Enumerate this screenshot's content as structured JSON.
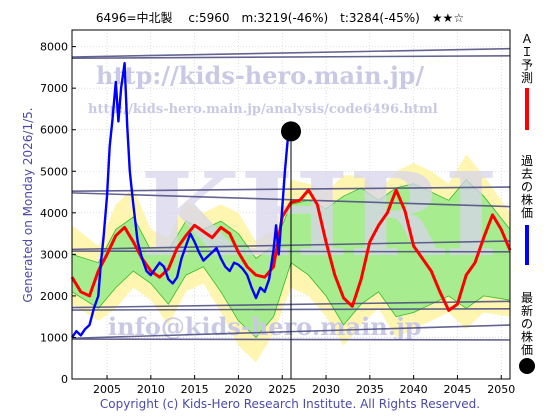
{
  "header": {
    "title": "6496=中北製　 c:5960　m:3219(-46%)　t:3284(-45%)　★★☆"
  },
  "side_label": "Generated on Monday 2026/1/5.",
  "copyright": "Copyright (c) Kids-Hero Research Institute. All Rights Reserved.",
  "watermarks": {
    "url_main": "http://kids-hero.main.jp/",
    "url_analysis": "http://kids-hero.main.jp/analysis/code6496.html",
    "email": "info@kids-hero.main.jp",
    "logo": "KHRI"
  },
  "legend": [
    {
      "label": "ＡＩ予測",
      "color": "#ff0000",
      "kind": "line"
    },
    {
      "label": "過去の株価",
      "color": "#0000ff",
      "kind": "line"
    },
    {
      "label": "最新の株価",
      "color": "#000000",
      "kind": "dot"
    }
  ],
  "colors": {
    "prediction": "#ff0000",
    "history": "#0000ff",
    "band_outer": "#fdf5b0",
    "band_inner": "#a8ec90",
    "band_line": "#33bb22",
    "ref_line": "#4a4a80",
    "grid": "#c8c8c8"
  },
  "chart_data": {
    "type": "line",
    "title": "6496=中北製　 c:5960　m:3219(-46%)　t:3284(-45%)　★★☆",
    "xlim": [
      2001,
      2051
    ],
    "ylim": [
      0,
      8400
    ],
    "xticks": [
      2005,
      2010,
      2015,
      2020,
      2025,
      2030,
      2035,
      2040,
      2045,
      2050
    ],
    "yticks": [
      0,
      1000,
      2000,
      3000,
      4000,
      5000,
      6000,
      7000,
      8000
    ],
    "grid": true,
    "current_year_marker": 2026,
    "latest_price": {
      "x": 2026,
      "y": 5960
    },
    "reference_lines": [
      {
        "x": [
          2001,
          2051
        ],
        "y": [
          7750,
          7950
        ]
      },
      {
        "x": [
          2001,
          2051
        ],
        "y": [
          7720,
          7780
        ]
      },
      {
        "x": [
          2001,
          2051
        ],
        "y": [
          4520,
          4620
        ]
      },
      {
        "x": [
          2001,
          2051
        ],
        "y": [
          4480,
          4150
        ]
      },
      {
        "x": [
          2001,
          2051
        ],
        "y": [
          3120,
          3320
        ]
      },
      {
        "x": [
          2001,
          2051
        ],
        "y": [
          3080,
          3060
        ]
      },
      {
        "x": [
          2001,
          2051
        ],
        "y": [
          1720,
          1870
        ]
      },
      {
        "x": [
          2001,
          2051
        ],
        "y": [
          1660,
          1690
        ]
      },
      {
        "x": [
          2001,
          2051
        ],
        "y": [
          980,
          1300
        ]
      },
      {
        "x": [
          2001,
          2051
        ],
        "y": [
          960,
          940
        ]
      }
    ],
    "band_outer_upper": {
      "x": [
        2001,
        2004,
        2006,
        2008,
        2010,
        2012,
        2014,
        2016,
        2018,
        2020,
        2022,
        2024,
        2026,
        2028,
        2030,
        2032,
        2034,
        2036,
        2038,
        2040,
        2042,
        2044,
        2046,
        2048,
        2051
      ],
      "y": [
        3700,
        3200,
        4200,
        4600,
        3600,
        3400,
        4300,
        4000,
        4200,
        4000,
        3300,
        3600,
        4800,
        4700,
        4500,
        4900,
        4900,
        4500,
        5000,
        5200,
        5000,
        4700,
        5400,
        4900,
        4000
      ]
    },
    "band_outer_lower": {
      "x": [
        2001,
        2004,
        2006,
        2008,
        2010,
        2012,
        2014,
        2016,
        2018,
        2020,
        2022,
        2024,
        2026,
        2028,
        2030,
        2032,
        2034,
        2036,
        2038,
        2040,
        2042,
        2044,
        2046,
        2048,
        2051
      ],
      "y": [
        1800,
        1400,
        1700,
        2200,
        1900,
        1300,
        2100,
        2300,
        1600,
        800,
        400,
        1100,
        2200,
        2000,
        1500,
        800,
        1300,
        1700,
        1000,
        1200,
        1400,
        1600,
        1200,
        1600,
        1500
      ]
    },
    "band_inner_upper": {
      "x": [
        2001,
        2004,
        2006,
        2008,
        2010,
        2012,
        2014,
        2016,
        2018,
        2020,
        2022,
        2024,
        2026,
        2028,
        2030,
        2032,
        2034,
        2036,
        2038,
        2040,
        2042,
        2044,
        2046,
        2048,
        2051
      ],
      "y": [
        3000,
        2800,
        3600,
        3900,
        3100,
        3100,
        3800,
        3600,
        3800,
        3500,
        2900,
        3200,
        4200,
        4300,
        4100,
        4400,
        4600,
        4300,
        4600,
        4700,
        4500,
        4300,
        4800,
        4400,
        3600
      ]
    },
    "band_inner_lower": {
      "x": [
        2001,
        2004,
        2006,
        2008,
        2010,
        2012,
        2014,
        2016,
        2018,
        2020,
        2022,
        2024,
        2026,
        2028,
        2030,
        2032,
        2034,
        2036,
        2038,
        2040,
        2042,
        2044,
        2046,
        2048,
        2051
      ],
      "y": [
        2100,
        1700,
        2200,
        2600,
        2300,
        1800,
        2500,
        2700,
        2100,
        1400,
        1000,
        1500,
        2800,
        2500,
        2000,
        1300,
        1800,
        2100,
        1500,
        1600,
        1800,
        2000,
        1700,
        2000,
        1900
      ]
    },
    "series": [
      {
        "name": "ＡＩ予測",
        "color": "#ff0000",
        "x": [
          2001,
          2002,
          2003,
          2004,
          2005,
          2006,
          2007,
          2008,
          2009,
          2010,
          2011,
          2012,
          2013,
          2014,
          2015,
          2016,
          2017,
          2018,
          2019,
          2020,
          2021,
          2022,
          2023,
          2024,
          2025,
          2026,
          2027,
          2028,
          2029,
          2030,
          2031,
          2032,
          2033,
          2034,
          2035,
          2036,
          2037,
          2038,
          2039,
          2040,
          2041,
          2042,
          2043,
          2044,
          2045,
          2046,
          2047,
          2048,
          2049,
          2050,
          2051
        ],
        "y": [
          2450,
          2100,
          2000,
          2600,
          3000,
          3450,
          3650,
          3300,
          2900,
          2600,
          2450,
          2650,
          3150,
          3450,
          3700,
          3550,
          3400,
          3650,
          3500,
          3050,
          2700,
          2500,
          2450,
          2700,
          3900,
          4250,
          4300,
          4550,
          4200,
          3300,
          2500,
          1950,
          1750,
          2400,
          3300,
          3700,
          4000,
          4550,
          4050,
          3200,
          2900,
          2600,
          2100,
          1650,
          1800,
          2500,
          2800,
          3400,
          3950,
          3600,
          3100
        ]
      },
      {
        "name": "過去の株価",
        "color": "#0000ff",
        "x": [
          2001,
          2001.5,
          2002,
          2002.5,
          2003,
          2003.5,
          2004,
          2004.3,
          2004.6,
          2005,
          2005.3,
          2005.6,
          2006,
          2006.3,
          2006.6,
          2007,
          2007.3,
          2007.6,
          2008,
          2008.5,
          2009,
          2009.5,
          2010,
          2010.5,
          2011,
          2011.5,
          2012,
          2012.5,
          2013,
          2013.5,
          2014,
          2014.5,
          2015,
          2015.5,
          2016,
          2016.5,
          2017,
          2017.5,
          2018,
          2018.5,
          2019,
          2019.5,
          2020,
          2020.5,
          2021,
          2021.5,
          2022,
          2022.5,
          2023,
          2023.5,
          2024,
          2024.3,
          2024.6,
          2025,
          2025.3,
          2025.6,
          2026
        ],
        "y": [
          1000,
          1150,
          1050,
          1200,
          1300,
          1700,
          2000,
          2800,
          3400,
          4400,
          5600,
          6200,
          7150,
          6200,
          7000,
          7600,
          6100,
          5000,
          4200,
          3300,
          2900,
          2600,
          2500,
          2650,
          2800,
          2700,
          2400,
          2300,
          2450,
          2900,
          3200,
          3500,
          3300,
          3050,
          2850,
          2950,
          3050,
          3150,
          2900,
          2700,
          2600,
          2800,
          2750,
          2650,
          2500,
          2200,
          1950,
          2200,
          2100,
          2400,
          3100,
          3700,
          3000,
          4100,
          5000,
          5700,
          6200
        ]
      }
    ]
  }
}
